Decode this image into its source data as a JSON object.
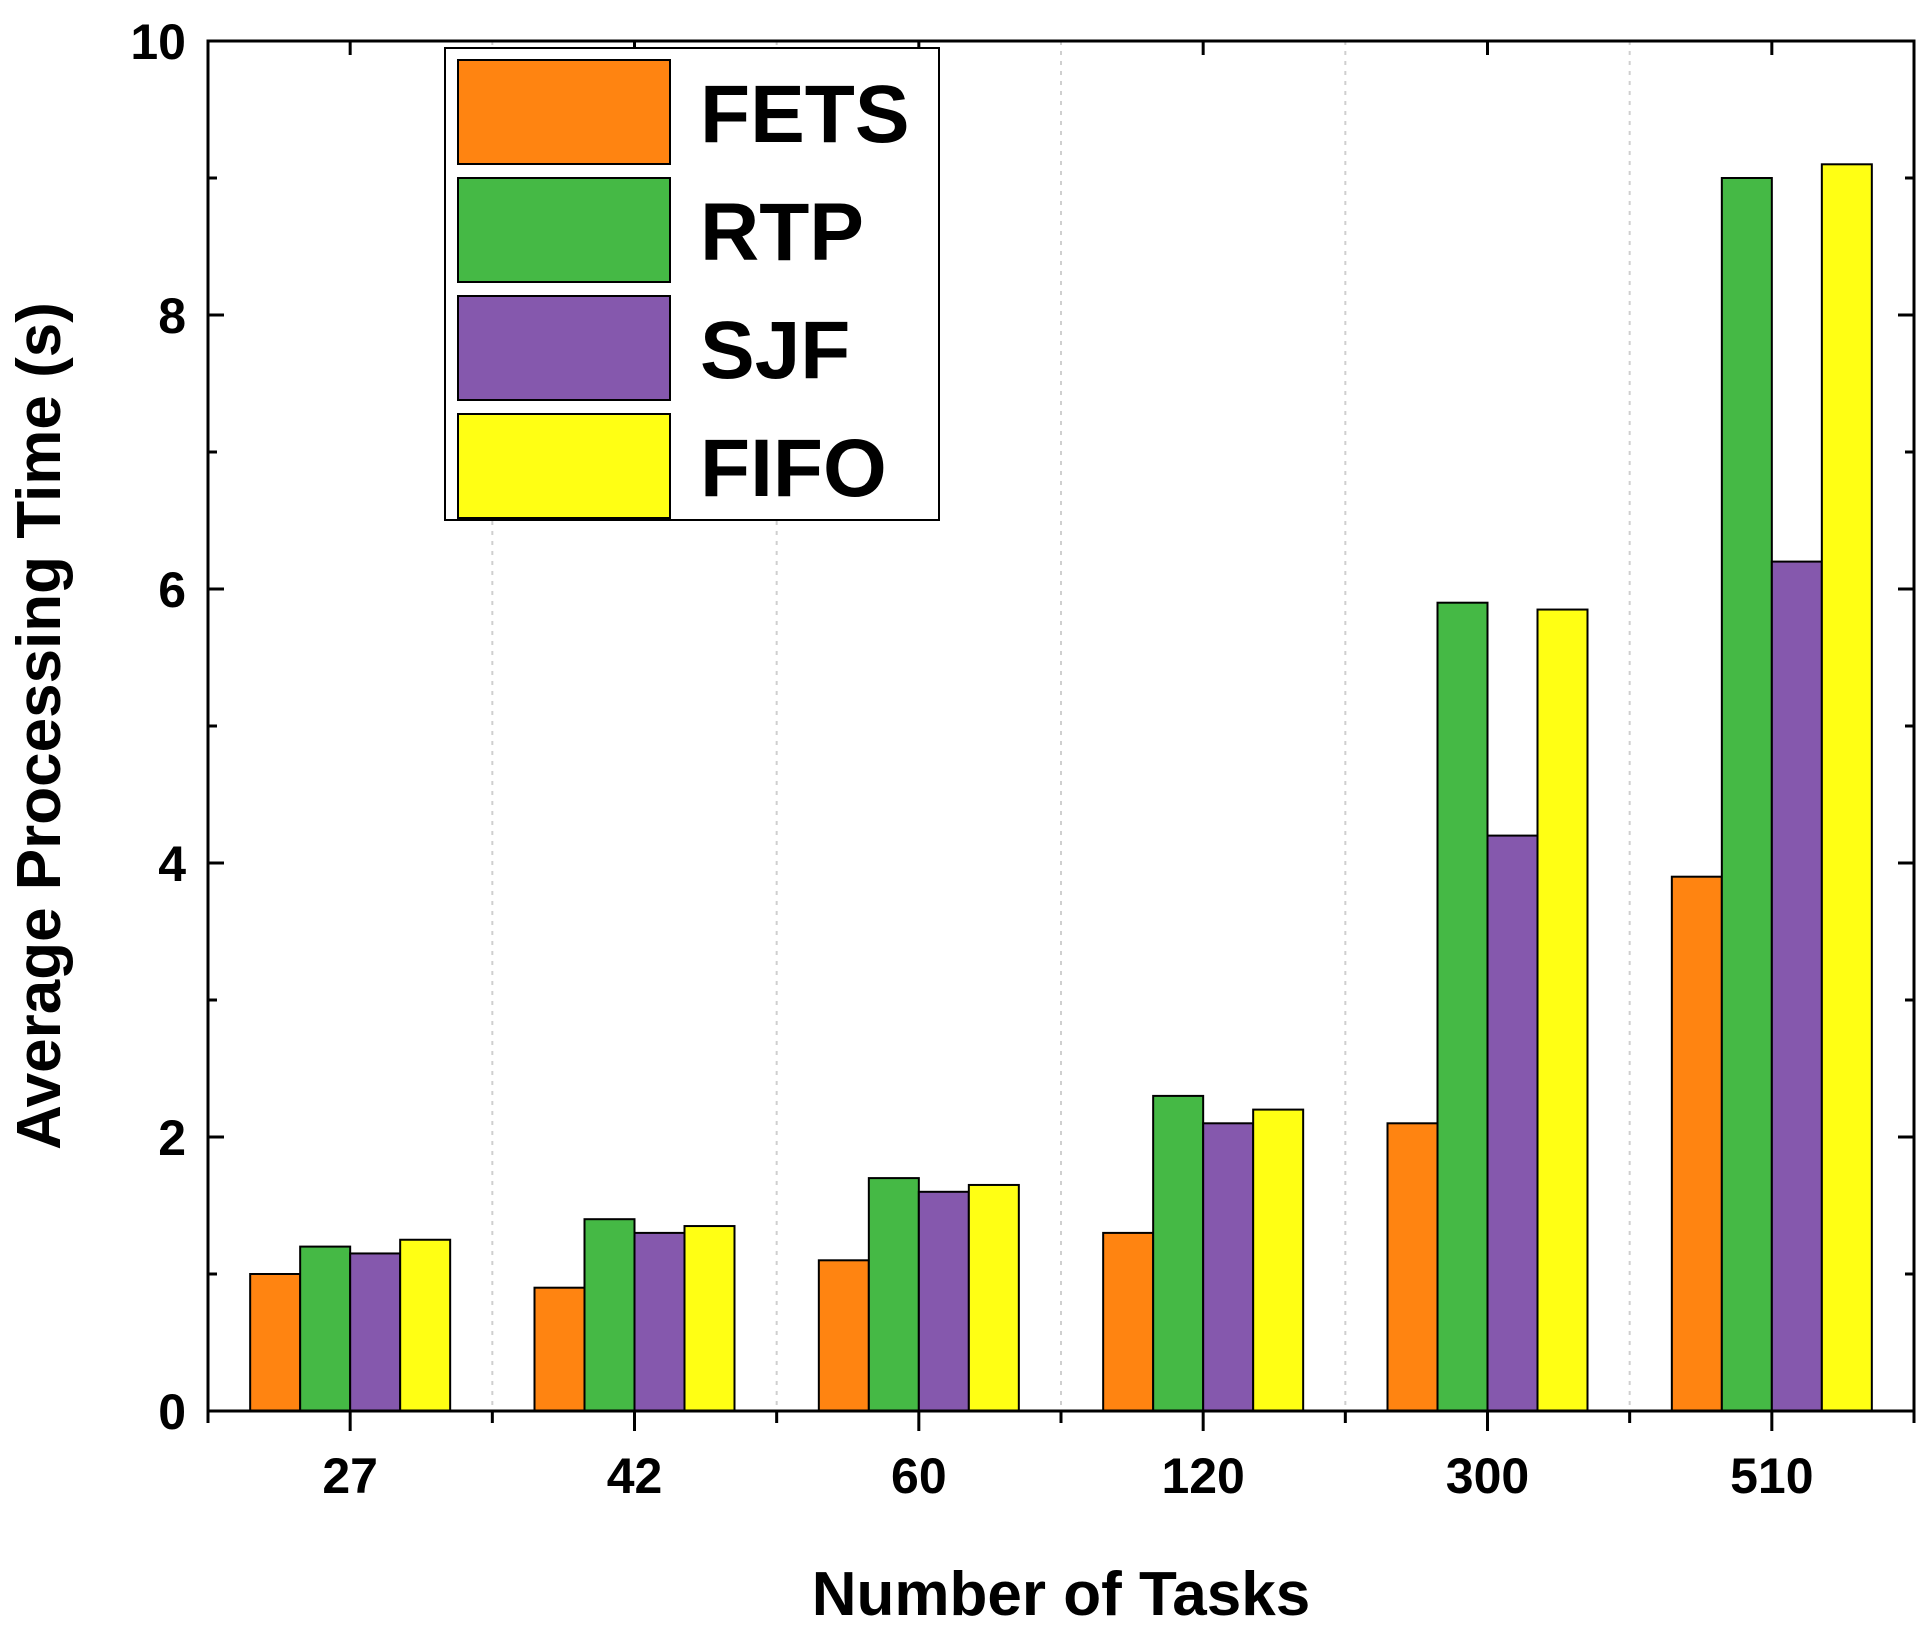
{
  "chart_data": {
    "type": "bar",
    "title": "",
    "xlabel": "Number of Tasks",
    "ylabel": "Average Processing Time (s)",
    "categories": [
      "27",
      "42",
      "60",
      "120",
      "300",
      "510"
    ],
    "ylim": [
      0,
      10
    ],
    "yticks": [
      "0",
      "2",
      "4",
      "6",
      "8",
      "10"
    ],
    "grid": "vertical dotted separators between categories",
    "legend_position": "top-left",
    "series": [
      {
        "name": "FETS",
        "color": "#ff8411",
        "values": [
          1.0,
          0.9,
          1.1,
          1.3,
          2.1,
          3.9
        ]
      },
      {
        "name": "RTP",
        "color": "#45b945",
        "values": [
          1.2,
          1.4,
          1.7,
          2.3,
          5.9,
          9.0
        ]
      },
      {
        "name": "SJF",
        "color": "#8558ad",
        "values": [
          1.15,
          1.3,
          1.6,
          2.1,
          4.2,
          6.2
        ]
      },
      {
        "name": "FIFO",
        "color": "#ffff14",
        "values": [
          1.25,
          1.35,
          1.65,
          2.2,
          5.85,
          9.1
        ]
      }
    ]
  }
}
